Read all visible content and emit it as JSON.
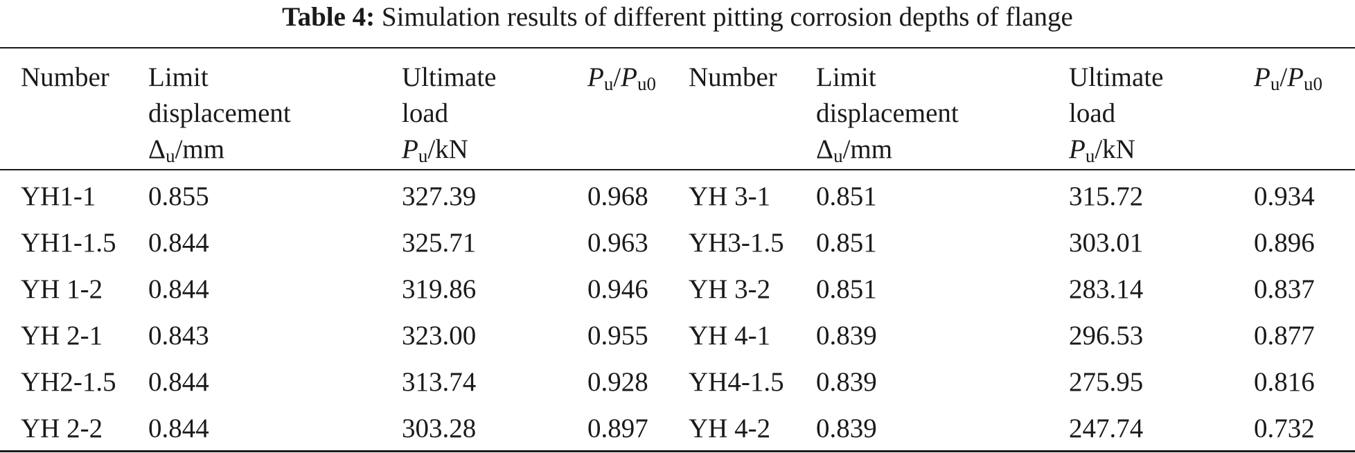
{
  "caption": {
    "label": "Table 4:",
    "text": "Simulation results of different pitting corrosion depths of flange"
  },
  "headers": {
    "number": "Number",
    "limit_line1": "Limit",
    "limit_line2": "displacement",
    "limit_symbol": "Δ",
    "limit_symbol_sub": "u",
    "limit_unit": "/mm",
    "ultimate_line1": "Ultimate",
    "ultimate_line2": "load",
    "ultimate_symbol": "P",
    "ultimate_symbol_sub": "u",
    "ultimate_unit": "/kN",
    "ratio_num": "P",
    "ratio_num_sub": "u",
    "ratio_slash": "/",
    "ratio_den": "P",
    "ratio_den_sub": "u0"
  },
  "rows": [
    {
      "left": {
        "number": "YH1-1",
        "limit": "0.855",
        "ultimate": "327.39",
        "ratio": "0.968"
      },
      "right": {
        "number": "YH 3-1",
        "limit": "0.851",
        "ultimate": "315.72",
        "ratio": "0.934"
      }
    },
    {
      "left": {
        "number": "YH1-1.5",
        "limit": "0.844",
        "ultimate": "325.71",
        "ratio": "0.963"
      },
      "right": {
        "number": "YH3-1.5",
        "limit": "0.851",
        "ultimate": "303.01",
        "ratio": "0.896"
      }
    },
    {
      "left": {
        "number": "YH 1-2",
        "limit": "0.844",
        "ultimate": "319.86",
        "ratio": "0.946"
      },
      "right": {
        "number": "YH 3-2",
        "limit": "0.851",
        "ultimate": "283.14",
        "ratio": "0.837"
      }
    },
    {
      "left": {
        "number": "YH 2-1",
        "limit": "0.843",
        "ultimate": "323.00",
        "ratio": "0.955"
      },
      "right": {
        "number": "YH 4-1",
        "limit": "0.839",
        "ultimate": "296.53",
        "ratio": "0.877"
      }
    },
    {
      "left": {
        "number": "YH2-1.5",
        "limit": "0.844",
        "ultimate": "313.74",
        "ratio": "0.928"
      },
      "right": {
        "number": "YH4-1.5",
        "limit": "0.839",
        "ultimate": "275.95",
        "ratio": "0.816"
      }
    },
    {
      "left": {
        "number": "YH 2-2",
        "limit": "0.844",
        "ultimate": "303.28",
        "ratio": "0.897"
      },
      "right": {
        "number": "YH 4-2",
        "limit": "0.839",
        "ultimate": "247.74",
        "ratio": "0.732"
      }
    }
  ]
}
